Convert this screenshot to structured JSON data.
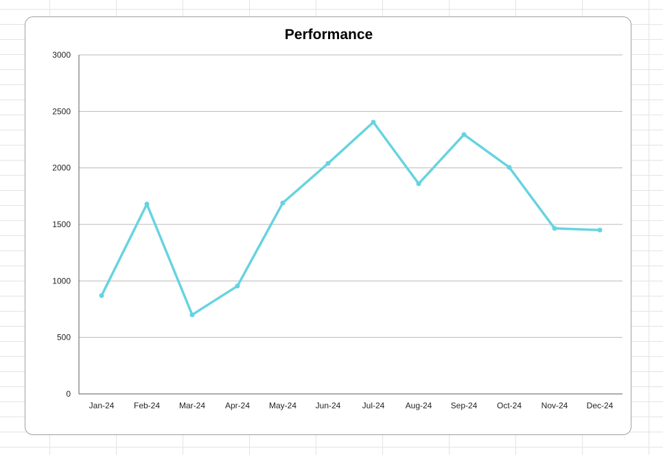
{
  "chart_data": {
    "type": "line",
    "title": "Performance",
    "xlabel": "",
    "ylabel": "",
    "categories": [
      "Jan-24",
      "Feb-24",
      "Mar-24",
      "Apr-24",
      "May-24",
      "Jun-24",
      "Jul-24",
      "Aug-24",
      "Sep-24",
      "Oct-24",
      "Nov-24",
      "Dec-24"
    ],
    "series": [
      {
        "values": [
          870,
          1680,
          700,
          955,
          1690,
          2040,
          2405,
          1860,
          2295,
          2005,
          1465,
          1450
        ],
        "color": "#66d3e0"
      }
    ],
    "ylim": [
      0,
      3000
    ],
    "yticks": [
      0,
      500,
      1000,
      1500,
      2000,
      2500,
      3000
    ],
    "grid": true,
    "legend": "none"
  }
}
